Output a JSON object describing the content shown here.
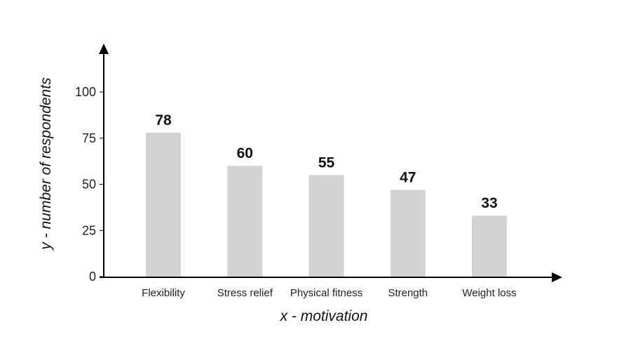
{
  "chart_data": {
    "type": "bar",
    "title": "",
    "xlabel": "x - motivation",
    "ylabel": "y - number of respondents",
    "categories": [
      "Flexibility",
      "Stress relief",
      "Physical fitness",
      "Strength",
      "Weight loss"
    ],
    "values": [
      78,
      60,
      55,
      47,
      33
    ],
    "data_labels": [
      "78",
      "60",
      "55",
      "47",
      "33"
    ],
    "yticks": [
      0,
      25,
      50,
      75,
      100
    ],
    "ylim": [
      0,
      120
    ],
    "grid": false,
    "legend": "none",
    "colors": {
      "bar": "#d3d3d3",
      "axis": "#000000",
      "text": "#222222"
    }
  }
}
